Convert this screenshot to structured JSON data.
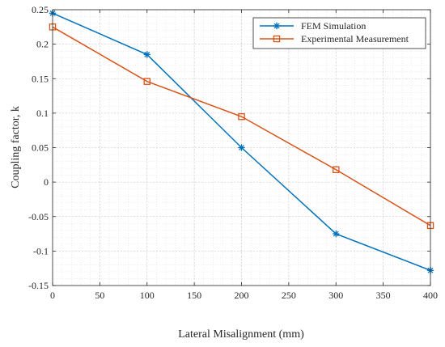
{
  "chart_data": {
    "type": "line",
    "title": "",
    "xlabel": "Lateral Misalignment (mm)",
    "ylabel": "Coupling factor, k",
    "x": [
      0,
      100,
      200,
      300,
      400
    ],
    "xlim": [
      0,
      400
    ],
    "ylim": [
      -0.15,
      0.25
    ],
    "xticks": [
      0,
      50,
      100,
      150,
      200,
      250,
      300,
      350,
      400
    ],
    "yticks": [
      -0.15,
      -0.1,
      -0.05,
      0,
      0.05,
      0.1,
      0.15,
      0.2,
      0.25
    ],
    "xtick_labels": [
      "0",
      "50",
      "100",
      "150",
      "200",
      "250",
      "300",
      "350",
      "400"
    ],
    "ytick_labels": [
      "-0.15",
      "-0.1",
      "-0.05",
      "0",
      "0.05",
      "0.1",
      "0.15",
      "0.2",
      "0.25"
    ],
    "grid": true,
    "minor_grid": true,
    "legend_position": "top-right",
    "series": [
      {
        "name": "FEM Simulation",
        "values": [
          0.245,
          0.185,
          0.05,
          -0.075,
          -0.128
        ],
        "color": "#0072BD",
        "marker": "asterisk"
      },
      {
        "name": "Experimental Measurement",
        "values": [
          0.225,
          0.146,
          0.095,
          0.018,
          -0.063
        ],
        "color": "#D95319",
        "marker": "square"
      }
    ]
  }
}
